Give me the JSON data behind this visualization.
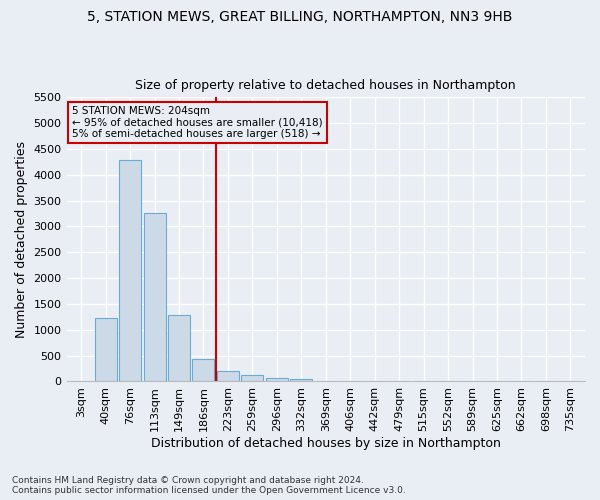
{
  "title_line1": "5, STATION MEWS, GREAT BILLING, NORTHAMPTON, NN3 9HB",
  "title_line2": "Size of property relative to detached houses in Northampton",
  "xlabel": "Distribution of detached houses by size in Northampton",
  "ylabel": "Number of detached properties",
  "categories": [
    "3sqm",
    "40sqm",
    "76sqm",
    "113sqm",
    "149sqm",
    "186sqm",
    "223sqm",
    "259sqm",
    "296sqm",
    "332sqm",
    "369sqm",
    "406sqm",
    "442sqm",
    "479sqm",
    "515sqm",
    "552sqm",
    "589sqm",
    "625sqm",
    "662sqm",
    "698sqm",
    "735sqm"
  ],
  "values": [
    0,
    1230,
    4280,
    3270,
    1290,
    430,
    200,
    130,
    70,
    50,
    0,
    0,
    0,
    0,
    0,
    0,
    0,
    0,
    0,
    0,
    0
  ],
  "bar_color": "#ccdae8",
  "bar_edge_color": "#6aaad4",
  "background_color": "#e8eef4",
  "grid_color": "#ffffff",
  "property_line_x": 5.5,
  "property_line_color": "#cc0000",
  "annotation_text": "5 STATION MEWS: 204sqm\n← 95% of detached houses are smaller (10,418)\n5% of semi-detached houses are larger (518) →",
  "annotation_box_color": "#cc0000",
  "ylim": [
    0,
    5500
  ],
  "yticks": [
    0,
    500,
    1000,
    1500,
    2000,
    2500,
    3000,
    3500,
    4000,
    4500,
    5000,
    5500
  ],
  "footnote": "Contains HM Land Registry data © Crown copyright and database right 2024.\nContains public sector information licensed under the Open Government Licence v3.0.",
  "title_fontsize": 10,
  "subtitle_fontsize": 9,
  "axis_label_fontsize": 9,
  "tick_fontsize": 8,
  "annotation_fontsize": 7.5,
  "footnote_fontsize": 6.5
}
